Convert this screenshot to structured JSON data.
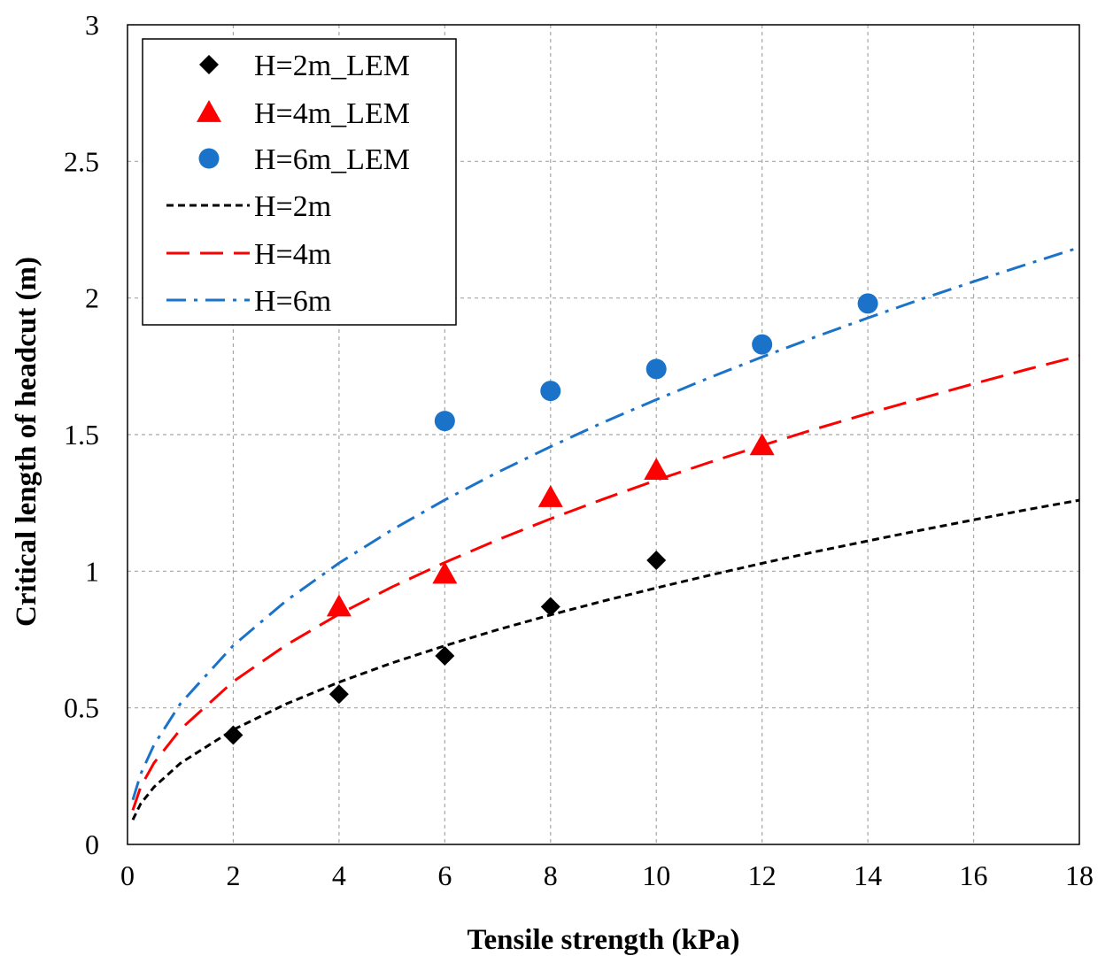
{
  "chart_data": {
    "type": "scatter",
    "title": "",
    "xlabel": "Tensile strength (kPa)",
    "ylabel": "Critical length of headcut (m)",
    "xlim": [
      0,
      18
    ],
    "ylim": [
      0,
      3
    ],
    "xticks": [
      0,
      2,
      4,
      6,
      8,
      10,
      12,
      14,
      16,
      18
    ],
    "yticks": [
      0,
      0.5,
      1,
      1.5,
      2,
      2.5,
      3
    ],
    "xtick_labels": [
      "0",
      "2",
      "4",
      "6",
      "8",
      "10",
      "12",
      "14",
      "16",
      "18"
    ],
    "ytick_labels": [
      "0",
      "0.5",
      "1",
      "1.5",
      "2",
      "2.5",
      "3"
    ],
    "grid": true,
    "legend_position": "top-left",
    "series": [
      {
        "name": "H=2m_LEM",
        "kind": "points",
        "marker": "diamond",
        "color": "#000000",
        "x": [
          2,
          4,
          6,
          8,
          10
        ],
        "y": [
          0.4,
          0.55,
          0.69,
          0.87,
          1.04
        ]
      },
      {
        "name": "H=4m_LEM",
        "kind": "points",
        "marker": "triangle",
        "color": "#ff0000",
        "x": [
          4,
          6,
          8,
          10,
          12
        ],
        "y": [
          0.87,
          0.99,
          1.27,
          1.37,
          1.46
        ]
      },
      {
        "name": "H=6m_LEM",
        "kind": "points",
        "marker": "circle",
        "color": "#1a73c8",
        "x": [
          6,
          8,
          10,
          12,
          14
        ],
        "y": [
          1.55,
          1.66,
          1.74,
          1.83,
          1.98
        ]
      },
      {
        "name": "H=2m",
        "kind": "curve",
        "dash": "short-dash",
        "color": "#000000",
        "x": [
          0.1,
          0.25,
          0.5,
          1,
          2,
          3,
          4,
          5,
          6,
          7,
          8,
          9,
          10,
          11,
          12,
          13,
          14,
          15,
          16,
          17,
          18
        ],
        "y": [
          0.09,
          0.149,
          0.21,
          0.297,
          0.42,
          0.514,
          0.594,
          0.664,
          0.727,
          0.786,
          0.84,
          0.891,
          0.939,
          0.985,
          1.029,
          1.071,
          1.111,
          1.15,
          1.188,
          1.225,
          1.26
        ]
      },
      {
        "name": "H=4m",
        "kind": "curve",
        "dash": "long-dash",
        "color": "#ff0000",
        "x": [
          0.1,
          0.25,
          0.5,
          1,
          2,
          3,
          4,
          5,
          6,
          7,
          8,
          9,
          10,
          11,
          12,
          13,
          14,
          15,
          16,
          17,
          18
        ],
        "y": [
          0.125,
          0.211,
          0.298,
          0.421,
          0.596,
          0.73,
          0.843,
          0.942,
          1.032,
          1.115,
          1.192,
          1.264,
          1.333,
          1.398,
          1.46,
          1.52,
          1.577,
          1.632,
          1.686,
          1.738,
          1.788
        ]
      },
      {
        "name": "H=6m",
        "kind": "curve",
        "dash": "dash-dot",
        "color": "#1a73c8",
        "x": [
          0.1,
          0.25,
          0.5,
          1,
          2,
          3,
          4,
          5,
          6,
          7,
          8,
          9,
          10,
          11,
          12,
          13,
          14,
          15,
          16,
          17,
          18
        ],
        "y": [
          0.163,
          0.258,
          0.364,
          0.515,
          0.728,
          0.892,
          1.03,
          1.151,
          1.261,
          1.362,
          1.456,
          1.545,
          1.628,
          1.708,
          1.784,
          1.857,
          1.927,
          1.995,
          2.06,
          2.123,
          2.185
        ]
      }
    ]
  }
}
